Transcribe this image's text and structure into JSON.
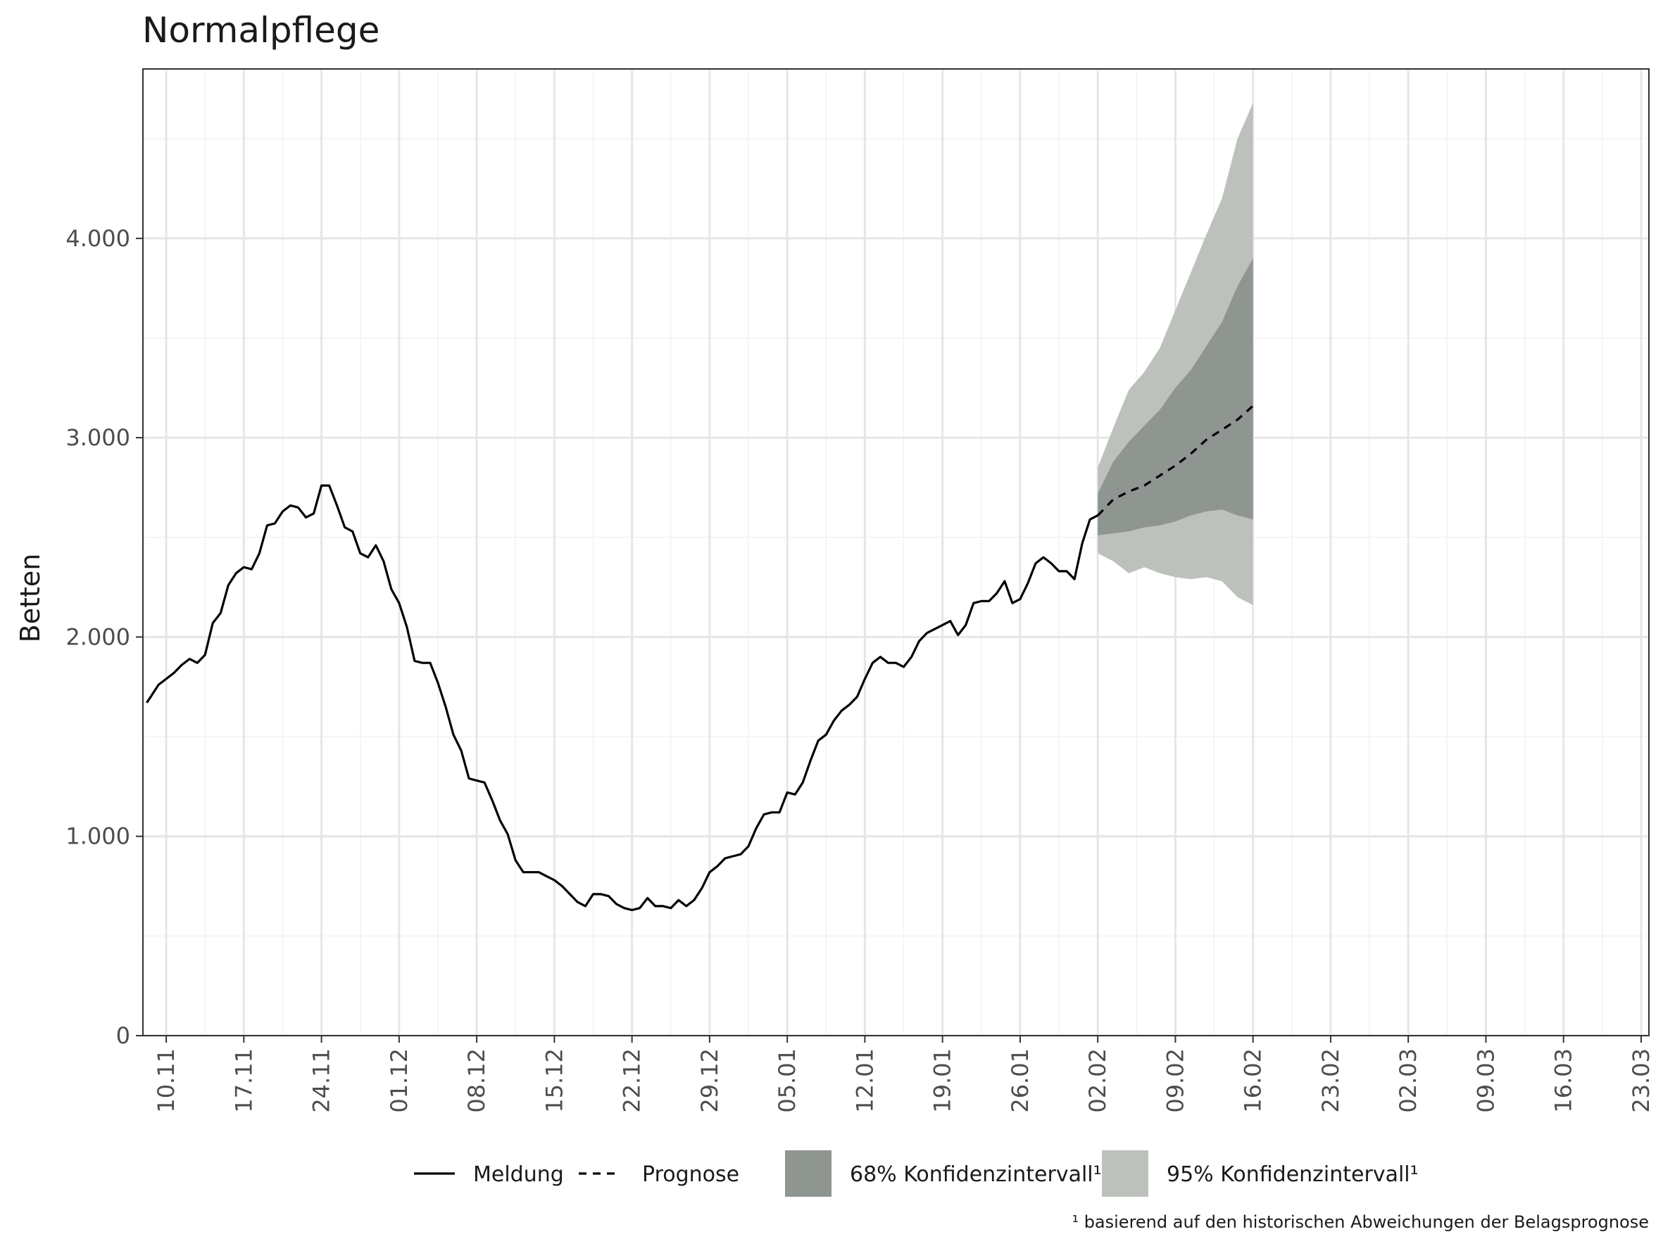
{
  "chart_data": {
    "type": "line",
    "title": "Normalpflege",
    "ylabel": "Betten",
    "xlabel": "",
    "ylim": [
      0,
      4850
    ],
    "yticks": [
      0,
      1000,
      2000,
      3000,
      4000
    ],
    "ytick_labels": [
      "0",
      "1.000",
      "2.000",
      "3.000",
      "4.000"
    ],
    "x_start": 0,
    "x_end": 194,
    "xticks": [
      {
        "x": 3,
        "label": "10.11"
      },
      {
        "x": 13,
        "label": "17.11"
      },
      {
        "x": 23,
        "label": "24.11"
      },
      {
        "x": 33,
        "label": "01.12"
      },
      {
        "x": 43,
        "label": "08.12"
      },
      {
        "x": 53,
        "label": "15.12"
      },
      {
        "x": 63,
        "label": "22.12"
      },
      {
        "x": 73,
        "label": "29.12"
      },
      {
        "x": 83,
        "label": "05.01"
      },
      {
        "x": 93,
        "label": "12.01"
      },
      {
        "x": 103,
        "label": "19.01"
      },
      {
        "x": 113,
        "label": "26.01"
      },
      {
        "x": 123,
        "label": "02.02"
      },
      {
        "x": 133,
        "label": "09.02"
      },
      {
        "x": 143,
        "label": "16.02"
      },
      {
        "x": 153,
        "label": "23.02"
      },
      {
        "x": 163,
        "label": "02.03"
      },
      {
        "x": 173,
        "label": "09.03"
      },
      {
        "x": 183,
        "label": "16.03"
      },
      {
        "x": 193,
        "label": "23.03"
      }
    ],
    "grid": true,
    "series": [
      {
        "name": "Meldung",
        "style": "solid",
        "color": "#000000",
        "points": [
          [
            0.5,
            1670
          ],
          [
            2,
            1760
          ],
          [
            3,
            1790
          ],
          [
            4,
            1820
          ],
          [
            5,
            1860
          ],
          [
            6,
            1890
          ],
          [
            7,
            1870
          ],
          [
            8,
            1910
          ],
          [
            9,
            2070
          ],
          [
            10,
            2120
          ],
          [
            11,
            2260
          ],
          [
            12,
            2320
          ],
          [
            13,
            2350
          ],
          [
            14,
            2340
          ],
          [
            15,
            2420
          ],
          [
            16,
            2560
          ],
          [
            17,
            2570
          ],
          [
            18,
            2630
          ],
          [
            19,
            2660
          ],
          [
            20,
            2650
          ],
          [
            21,
            2600
          ],
          [
            22,
            2620
          ],
          [
            23,
            2760
          ],
          [
            24,
            2760
          ],
          [
            25,
            2660
          ],
          [
            26,
            2550
          ],
          [
            27,
            2530
          ],
          [
            28,
            2420
          ],
          [
            29,
            2400
          ],
          [
            30,
            2460
          ],
          [
            31,
            2380
          ],
          [
            32,
            2240
          ],
          [
            33,
            2170
          ],
          [
            34,
            2050
          ],
          [
            35,
            1880
          ],
          [
            36,
            1870
          ],
          [
            37,
            1870
          ],
          [
            38,
            1770
          ],
          [
            39,
            1650
          ],
          [
            40,
            1510
          ],
          [
            41,
            1430
          ],
          [
            42,
            1290
          ],
          [
            43,
            1280
          ],
          [
            44,
            1270
          ],
          [
            45,
            1180
          ],
          [
            46,
            1080
          ],
          [
            47,
            1010
          ],
          [
            48,
            880
          ],
          [
            49,
            820
          ],
          [
            50,
            820
          ],
          [
            51,
            820
          ],
          [
            52,
            800
          ],
          [
            53,
            780
          ],
          [
            54,
            750
          ],
          [
            55,
            710
          ],
          [
            56,
            670
          ],
          [
            57,
            650
          ],
          [
            58,
            710
          ],
          [
            59,
            710
          ],
          [
            60,
            700
          ],
          [
            61,
            660
          ],
          [
            62,
            640
          ],
          [
            63,
            630
          ],
          [
            64,
            640
          ],
          [
            65,
            690
          ],
          [
            66,
            650
          ],
          [
            67,
            650
          ],
          [
            68,
            640
          ],
          [
            69,
            680
          ],
          [
            70,
            650
          ],
          [
            71,
            680
          ],
          [
            72,
            740
          ],
          [
            73,
            820
          ],
          [
            74,
            850
          ],
          [
            75,
            890
          ],
          [
            76,
            900
          ],
          [
            77,
            910
          ],
          [
            78,
            950
          ],
          [
            79,
            1040
          ],
          [
            80,
            1110
          ],
          [
            81,
            1120
          ],
          [
            82,
            1120
          ],
          [
            83,
            1220
          ],
          [
            84,
            1210
          ],
          [
            85,
            1270
          ],
          [
            86,
            1380
          ],
          [
            87,
            1480
          ],
          [
            88,
            1510
          ],
          [
            89,
            1580
          ],
          [
            90,
            1630
          ],
          [
            91,
            1660
          ],
          [
            92,
            1700
          ],
          [
            93,
            1790
          ],
          [
            94,
            1870
          ],
          [
            95,
            1900
          ],
          [
            96,
            1870
          ],
          [
            97,
            1870
          ],
          [
            98,
            1850
          ],
          [
            99,
            1900
          ],
          [
            100,
            1980
          ],
          [
            101,
            2020
          ],
          [
            102,
            2040
          ],
          [
            103,
            2060
          ],
          [
            104,
            2080
          ],
          [
            105,
            2010
          ],
          [
            106,
            2060
          ],
          [
            107,
            2170
          ],
          [
            108,
            2180
          ],
          [
            109,
            2180
          ],
          [
            110,
            2220
          ],
          [
            111,
            2280
          ],
          [
            112,
            2170
          ],
          [
            113,
            2190
          ],
          [
            114,
            2270
          ],
          [
            115,
            2370
          ],
          [
            116,
            2400
          ],
          [
            117,
            2370
          ],
          [
            118,
            2330
          ],
          [
            119,
            2330
          ],
          [
            120,
            2290
          ],
          [
            121,
            2470
          ],
          [
            122,
            2590
          ],
          [
            123,
            2610
          ]
        ]
      },
      {
        "name": "Prognose",
        "style": "dashed",
        "color": "#000000",
        "points": [
          [
            123,
            2610
          ],
          [
            125,
            2690
          ],
          [
            127,
            2730
          ],
          [
            129,
            2760
          ],
          [
            131,
            2810
          ],
          [
            133,
            2860
          ],
          [
            135,
            2920
          ],
          [
            137,
            2990
          ],
          [
            139,
            3040
          ],
          [
            141,
            3090
          ],
          [
            143,
            3160
          ]
        ]
      }
    ],
    "bands": [
      {
        "name": "95% Konfidenzintervall¹",
        "color": "#bdc1bc",
        "x": [
          123,
          125,
          127,
          129,
          131,
          133,
          135,
          137,
          139,
          141,
          143
        ],
        "lower": [
          2420,
          2380,
          2320,
          2350,
          2320,
          2300,
          2290,
          2300,
          2280,
          2200,
          2160
        ],
        "upper": [
          2850,
          3050,
          3240,
          3330,
          3450,
          3640,
          3830,
          4020,
          4200,
          4500,
          4680
        ]
      },
      {
        "name": "68% Konfidenzintervall¹",
        "color": "#8f9590",
        "x": [
          123,
          125,
          127,
          129,
          131,
          133,
          135,
          137,
          139,
          141,
          143
        ],
        "lower": [
          2510,
          2520,
          2530,
          2550,
          2560,
          2580,
          2610,
          2630,
          2640,
          2610,
          2590
        ],
        "upper": [
          2720,
          2880,
          2980,
          3060,
          3140,
          3250,
          3340,
          3460,
          3580,
          3760,
          3900
        ]
      }
    ],
    "legend": {
      "placement": "bottom",
      "items": [
        {
          "label": "Meldung",
          "kind": "solid-line"
        },
        {
          "label": "Prognose",
          "kind": "dashed-line"
        },
        {
          "label": "68% Konfidenzintervall¹",
          "kind": "fill",
          "color": "#8f9590"
        },
        {
          "label": "95% Konfidenzintervall¹",
          "kind": "fill",
          "color": "#bdc1bc"
        }
      ]
    },
    "footnote": "¹ basierend auf den historischen Abweichungen der Belagsprognose"
  }
}
